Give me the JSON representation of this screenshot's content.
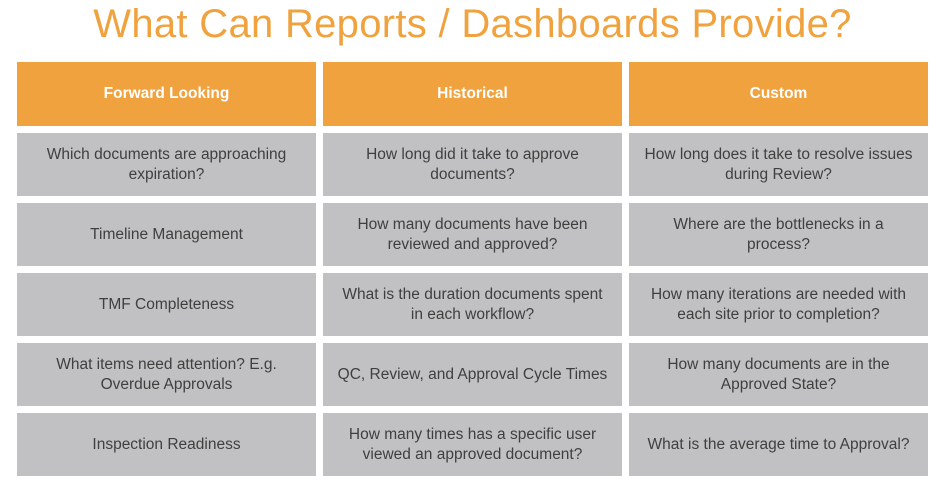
{
  "title": "What Can Reports / Dashboards Provide?",
  "colors": {
    "accent": "#F0A23E",
    "cell": "#C1C1C3",
    "text": "#3f3f3f"
  },
  "headers": [
    "Forward Looking",
    "Historical",
    "Custom"
  ],
  "rows": [
    [
      "Which documents are approaching expiration?",
      "How long did it take to approve documents?",
      "How long does it take to resolve issues during Review?"
    ],
    [
      "Timeline Management",
      "How many documents have been reviewed and approved?",
      "Where are the bottlenecks in a process?"
    ],
    [
      "TMF Completeness",
      "What is the duration documents spent in each workflow?",
      "How many iterations are needed with each site prior to completion?"
    ],
    [
      "What items need attention? E.g. Overdue Approvals",
      "QC, Review, and Approval Cycle Times",
      "How many documents are in the Approved State?"
    ],
    [
      "Inspection Readiness",
      "How many times has a specific user viewed an approved document?",
      "What is the average time to Approval?"
    ]
  ]
}
